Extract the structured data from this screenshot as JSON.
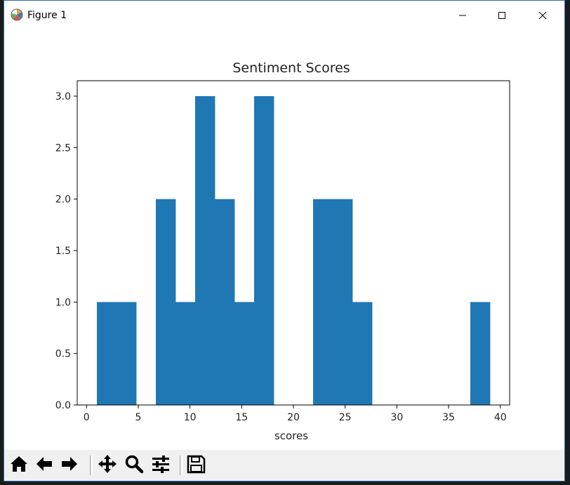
{
  "window": {
    "title": "Figure 1",
    "icon": "matplotlib-logo-icon",
    "controls": [
      "minimize-icon",
      "maximize-icon",
      "close-icon"
    ]
  },
  "toolbar": {
    "buttons": [
      "home-icon",
      "back-arrow-icon",
      "forward-arrow-icon",
      "pan-move-icon",
      "zoom-magnifier-icon",
      "configure-subplots-icon",
      "save-floppy-icon"
    ]
  },
  "chart_data": {
    "type": "bar",
    "title": "Sentiment Scores",
    "xlabel": "scores",
    "ylabel": "",
    "bar_color": "#1f77b4",
    "bins": [
      {
        "x0": 1.0,
        "x1": 2.9,
        "count": 1
      },
      {
        "x0": 2.9,
        "x1": 4.8,
        "count": 1
      },
      {
        "x0": 4.8,
        "x1": 6.7,
        "count": 0
      },
      {
        "x0": 6.7,
        "x1": 8.6,
        "count": 2
      },
      {
        "x0": 8.6,
        "x1": 10.5,
        "count": 1
      },
      {
        "x0": 10.5,
        "x1": 12.4,
        "count": 3
      },
      {
        "x0": 12.4,
        "x1": 14.3,
        "count": 2
      },
      {
        "x0": 14.3,
        "x1": 16.2,
        "count": 1
      },
      {
        "x0": 16.2,
        "x1": 18.1,
        "count": 3
      },
      {
        "x0": 18.1,
        "x1": 20.0,
        "count": 0
      },
      {
        "x0": 20.0,
        "x1": 21.9,
        "count": 0
      },
      {
        "x0": 21.9,
        "x1": 23.8,
        "count": 2
      },
      {
        "x0": 23.8,
        "x1": 25.7,
        "count": 2
      },
      {
        "x0": 25.7,
        "x1": 27.6,
        "count": 1
      },
      {
        "x0": 27.6,
        "x1": 29.5,
        "count": 0
      },
      {
        "x0": 29.5,
        "x1": 31.4,
        "count": 0
      },
      {
        "x0": 31.4,
        "x1": 33.3,
        "count": 0
      },
      {
        "x0": 33.3,
        "x1": 35.2,
        "count": 0
      },
      {
        "x0": 35.2,
        "x1": 37.1,
        "count": 0
      },
      {
        "x0": 37.1,
        "x1": 39.0,
        "count": 1
      }
    ],
    "xlim": [
      -0.9,
      40.9
    ],
    "ylim": [
      0,
      3.15
    ],
    "xticks": [
      0,
      5,
      10,
      15,
      20,
      25,
      30,
      35,
      40
    ],
    "xtick_labels": [
      "0",
      "5",
      "10",
      "15",
      "20",
      "25",
      "30",
      "35",
      "40"
    ],
    "yticks": [
      0.0,
      0.5,
      1.0,
      1.5,
      2.0,
      2.5,
      3.0
    ],
    "ytick_labels": [
      "0.0",
      "0.5",
      "1.0",
      "1.5",
      "2.0",
      "2.5",
      "3.0"
    ],
    "grid": false,
    "legend": "none"
  }
}
